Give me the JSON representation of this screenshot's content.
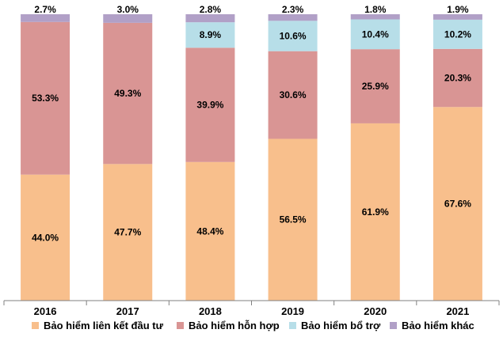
{
  "chart_data": {
    "type": "bar",
    "stacked": true,
    "percent": true,
    "categories": [
      "2016",
      "2017",
      "2018",
      "2019",
      "2020",
      "2021"
    ],
    "series": [
      {
        "name": "Bảo hiểm liên kết đầu tư",
        "color": "#F8BF8C",
        "values": [
          44.0,
          47.7,
          48.4,
          56.5,
          61.9,
          67.6
        ],
        "labels": [
          "44.0%",
          "47.7%",
          "48.4%",
          "56.5%",
          "61.9%",
          "67.6%"
        ]
      },
      {
        "name": "Bảo hiểm hỗn hợp",
        "color": "#D99594",
        "values": [
          53.3,
          49.3,
          39.9,
          30.6,
          25.9,
          20.3
        ],
        "labels": [
          "53.3%",
          "49.3%",
          "39.9%",
          "30.6%",
          "25.9%",
          "20.3%"
        ]
      },
      {
        "name": "Bảo hiểm bổ trợ",
        "color": "#B7DEE8",
        "values": [
          0,
          0,
          8.9,
          10.6,
          10.4,
          10.2
        ],
        "labels": [
          "",
          "",
          "8.9%",
          "10.6%",
          "10.4%",
          "10.2%"
        ]
      },
      {
        "name": "Bảo hiểm khác",
        "color": "#B1A0C7",
        "values": [
          2.7,
          3.0,
          2.8,
          2.3,
          1.8,
          1.9
        ],
        "labels": [
          "2.7%",
          "3.0%",
          "2.8%",
          "2.3%",
          "1.8%",
          "1.9%"
        ]
      }
    ],
    "ylim": [
      0,
      100
    ],
    "title": "",
    "xlabel": "",
    "ylabel": "",
    "grid": false,
    "legend_position": "bottom"
  }
}
